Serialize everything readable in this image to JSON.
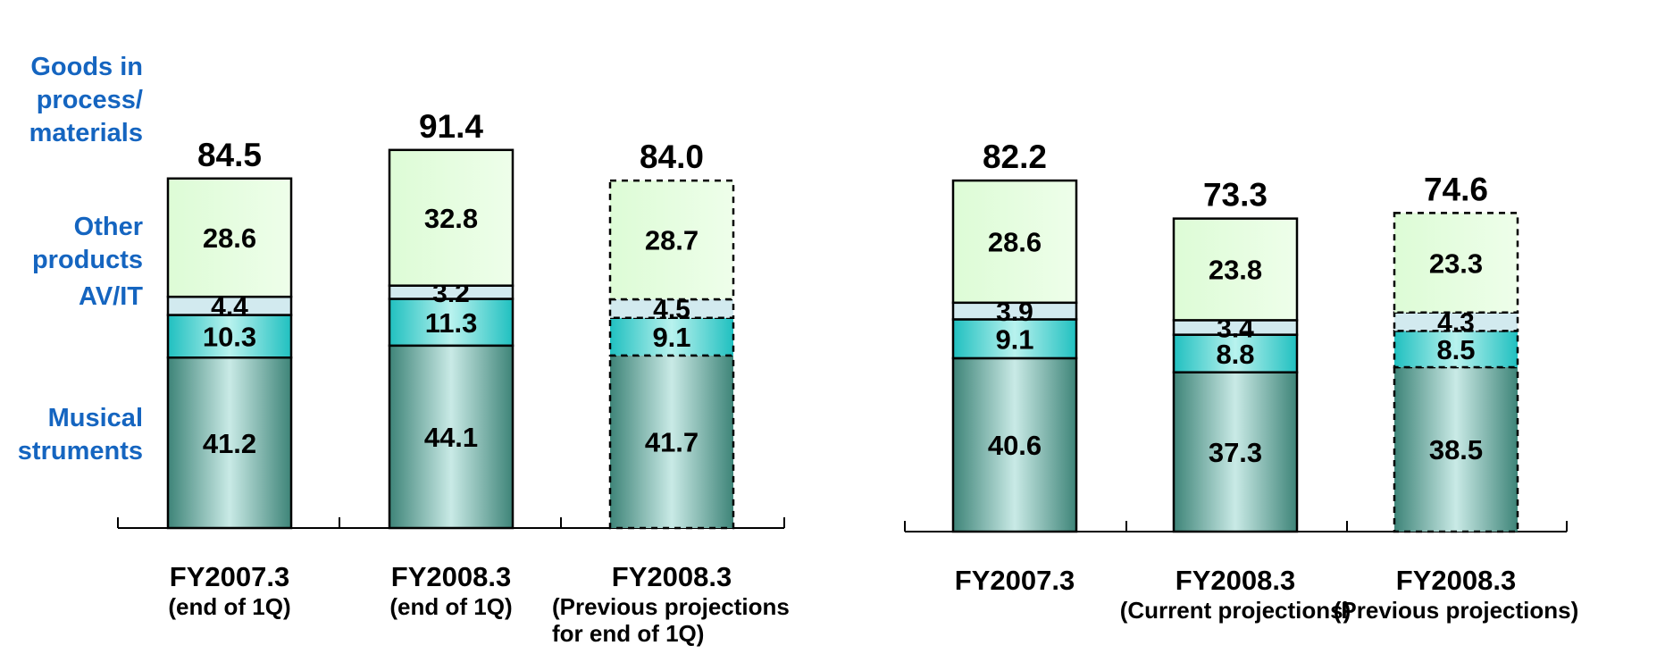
{
  "legend": {
    "goods": "Goods in\nprocess/\nmaterials",
    "other": "Other\nproducts",
    "avit": "AV/IT",
    "musical": "Musical\nstruments"
  },
  "colors": {
    "goods": "#DDFCD6",
    "other": "#D2EAEF",
    "avit_center": "#B8F2EE",
    "avit_edge": "#20C0C0",
    "musical_center": "#C9EAE6",
    "musical_edge": "#3E8478",
    "outline": "#000000"
  },
  "chart_data": [
    {
      "type": "bar",
      "stacked": true,
      "categories": [
        "FY2007.3",
        "FY2008.3",
        "FY2008.3"
      ],
      "category_sublabels": [
        "(end of 1Q)",
        "(end of 1Q)",
        "(Previous projections\nfor end of 1Q)"
      ],
      "projection": [
        false,
        false,
        true
      ],
      "totals": [
        "84.5",
        "91.4",
        "84.0"
      ],
      "series": [
        {
          "key": "musical",
          "values": [
            41.2,
            44.1,
            41.7
          ],
          "labels": [
            "41.2",
            "44.1",
            "41.7"
          ]
        },
        {
          "key": "avit",
          "values": [
            10.3,
            11.3,
            9.1
          ],
          "labels": [
            "10.3",
            "11.3",
            "9.1"
          ]
        },
        {
          "key": "other",
          "values": [
            4.4,
            3.2,
            4.5
          ],
          "labels": [
            "4.4",
            "3.2",
            "4.5"
          ]
        },
        {
          "key": "goods",
          "values": [
            28.6,
            32.8,
            28.7
          ],
          "labels": [
            "28.6",
            "32.8",
            "28.7"
          ]
        }
      ]
    },
    {
      "type": "bar",
      "stacked": true,
      "categories": [
        "FY2007.3",
        "FY2008.3",
        "FY2008.3"
      ],
      "category_sublabels": [
        "",
        "(Current projections)",
        "(Previous projections)"
      ],
      "projection": [
        false,
        false,
        true
      ],
      "totals": [
        "82.2",
        "73.3",
        "74.6"
      ],
      "series": [
        {
          "key": "musical",
          "values": [
            40.6,
            37.3,
            38.5
          ],
          "labels": [
            "40.6",
            "37.3",
            "38.5"
          ]
        },
        {
          "key": "avit",
          "values": [
            9.1,
            8.8,
            8.5
          ],
          "labels": [
            "9.1",
            "8.8",
            "8.5"
          ]
        },
        {
          "key": "other",
          "values": [
            3.9,
            3.4,
            4.3
          ],
          "labels": [
            "3.9",
            "3.4",
            "4.3"
          ]
        },
        {
          "key": "goods",
          "values": [
            28.6,
            23.8,
            23.3
          ],
          "labels": [
            "28.6",
            "23.8",
            "23.3"
          ]
        }
      ]
    }
  ]
}
